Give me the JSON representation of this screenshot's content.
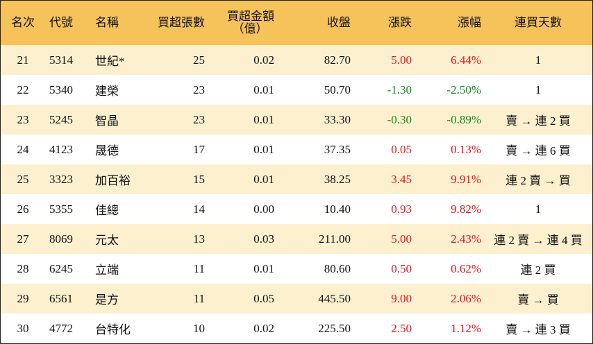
{
  "header": {
    "rank": "名次",
    "code": "代號",
    "name": "名稱",
    "net_buy_lots": "買超張數",
    "net_buy_amount_line1": "買超金額",
    "net_buy_amount_line2": "（億）",
    "close": "收盤",
    "change": "漲跌",
    "change_pct": "漲幅",
    "consecutive_days": "連買天數"
  },
  "rows": [
    {
      "rank": "21",
      "code": "5314",
      "name": "世紀*",
      "lots": "25",
      "amount": "0.02",
      "close": "82.70",
      "change": "5.00",
      "pct": "6.44%",
      "days": "1",
      "trend": "up"
    },
    {
      "rank": "22",
      "code": "5340",
      "name": "建榮",
      "lots": "23",
      "amount": "0.01",
      "close": "50.70",
      "change": "-1.30",
      "pct": "-2.50%",
      "days": "1",
      "trend": "down"
    },
    {
      "rank": "23",
      "code": "5245",
      "name": "智晶",
      "lots": "23",
      "amount": "0.01",
      "close": "33.30",
      "change": "-0.30",
      "pct": "-0.89%",
      "days": "賣 → 連 2 買",
      "trend": "down"
    },
    {
      "rank": "24",
      "code": "4123",
      "name": "晟德",
      "lots": "17",
      "amount": "0.01",
      "close": "37.35",
      "change": "0.05",
      "pct": "0.13%",
      "days": "賣 → 連 6 買",
      "trend": "up"
    },
    {
      "rank": "25",
      "code": "3323",
      "name": "加百裕",
      "lots": "15",
      "amount": "0.01",
      "close": "38.25",
      "change": "3.45",
      "pct": "9.91%",
      "days": "連 2 賣 → 買",
      "trend": "up"
    },
    {
      "rank": "26",
      "code": "5355",
      "name": "佳總",
      "lots": "14",
      "amount": "0.00",
      "close": "10.40",
      "change": "0.93",
      "pct": "9.82%",
      "days": "1",
      "trend": "up"
    },
    {
      "rank": "27",
      "code": "8069",
      "name": "元太",
      "lots": "13",
      "amount": "0.03",
      "close": "211.00",
      "change": "5.00",
      "pct": "2.43%",
      "days": "連 2 賣 → 連 4 買",
      "trend": "up"
    },
    {
      "rank": "28",
      "code": "6245",
      "name": "立端",
      "lots": "11",
      "amount": "0.01",
      "close": "80.60",
      "change": "0.50",
      "pct": "0.62%",
      "days": "連 2 買",
      "trend": "up"
    },
    {
      "rank": "29",
      "code": "6561",
      "name": "是方",
      "lots": "11",
      "amount": "0.05",
      "close": "445.50",
      "change": "9.00",
      "pct": "2.06%",
      "days": "賣 → 買",
      "trend": "up"
    },
    {
      "rank": "30",
      "code": "4772",
      "name": "台特化",
      "lots": "10",
      "amount": "0.02",
      "close": "225.50",
      "change": "2.50",
      "pct": "1.12%",
      "days": "賣 → 連 3 買",
      "trend": "up"
    }
  ],
  "colors": {
    "header_bg": "#f6c25a",
    "odd_row_bg": "#fdf0cf",
    "even_row_bg": "#ffffff",
    "up": "#e8141c",
    "down": "#118a1e"
  }
}
